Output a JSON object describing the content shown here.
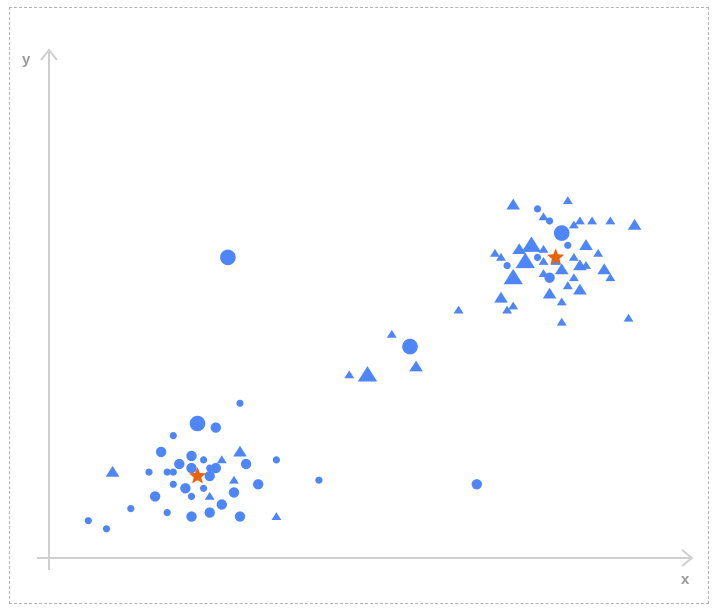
{
  "chart_data": {
    "type": "scatter",
    "title": "",
    "xlabel": "x",
    "ylabel": "y",
    "xlim": [
      0,
      100
    ],
    "ylim": [
      0,
      100
    ],
    "grid": false,
    "legend": "none",
    "colors": {
      "point": "#4f86f7",
      "centroid": "#e8640c"
    },
    "centroids": [
      {
        "x": 22,
        "y": 17
      },
      {
        "x": 81,
        "y": 71
      }
    ],
    "points": [
      {
        "x": 22,
        "y": 30,
        "shape": "circle",
        "size": "large"
      },
      {
        "x": 27,
        "y": 71,
        "shape": "circle",
        "size": "large"
      },
      {
        "x": 57,
        "y": 49,
        "shape": "circle",
        "size": "large"
      },
      {
        "x": 82,
        "y": 77,
        "shape": "circle",
        "size": "large"
      },
      {
        "x": 29,
        "y": 35,
        "shape": "circle",
        "size": "small"
      },
      {
        "x": 25,
        "y": 29,
        "shape": "circle",
        "size": "medium"
      },
      {
        "x": 18,
        "y": 27,
        "shape": "circle",
        "size": "small"
      },
      {
        "x": 16,
        "y": 23,
        "shape": "circle",
        "size": "medium"
      },
      {
        "x": 21,
        "y": 22,
        "shape": "circle",
        "size": "medium"
      },
      {
        "x": 23,
        "y": 21,
        "shape": "circle",
        "size": "small"
      },
      {
        "x": 19,
        "y": 20,
        "shape": "circle",
        "size": "medium"
      },
      {
        "x": 21,
        "y": 19,
        "shape": "circle",
        "size": "medium"
      },
      {
        "x": 18,
        "y": 18,
        "shape": "circle",
        "size": "small"
      },
      {
        "x": 17,
        "y": 18,
        "shape": "circle",
        "size": "small"
      },
      {
        "x": 14,
        "y": 18,
        "shape": "circle",
        "size": "small"
      },
      {
        "x": 24,
        "y": 19,
        "shape": "circle",
        "size": "small"
      },
      {
        "x": 25,
        "y": 19,
        "shape": "circle",
        "size": "medium"
      },
      {
        "x": 30,
        "y": 20,
        "shape": "circle",
        "size": "medium"
      },
      {
        "x": 35,
        "y": 21,
        "shape": "circle",
        "size": "small"
      },
      {
        "x": 24,
        "y": 17,
        "shape": "circle",
        "size": "medium"
      },
      {
        "x": 18,
        "y": 15,
        "shape": "circle",
        "size": "small"
      },
      {
        "x": 32,
        "y": 15,
        "shape": "circle",
        "size": "medium"
      },
      {
        "x": 20,
        "y": 14,
        "shape": "circle",
        "size": "medium"
      },
      {
        "x": 23,
        "y": 14,
        "shape": "circle",
        "size": "small"
      },
      {
        "x": 28,
        "y": 13,
        "shape": "circle",
        "size": "medium"
      },
      {
        "x": 15,
        "y": 12,
        "shape": "circle",
        "size": "medium"
      },
      {
        "x": 21,
        "y": 12,
        "shape": "circle",
        "size": "small"
      },
      {
        "x": 26,
        "y": 10,
        "shape": "circle",
        "size": "medium"
      },
      {
        "x": 11,
        "y": 9,
        "shape": "circle",
        "size": "small"
      },
      {
        "x": 17,
        "y": 8,
        "shape": "circle",
        "size": "small"
      },
      {
        "x": 21,
        "y": 7,
        "shape": "circle",
        "size": "medium"
      },
      {
        "x": 24,
        "y": 8,
        "shape": "circle",
        "size": "medium"
      },
      {
        "x": 29,
        "y": 7,
        "shape": "circle",
        "size": "medium"
      },
      {
        "x": 4,
        "y": 6,
        "shape": "circle",
        "size": "small"
      },
      {
        "x": 7,
        "y": 4,
        "shape": "circle",
        "size": "small"
      },
      {
        "x": 42,
        "y": 16,
        "shape": "circle",
        "size": "small"
      },
      {
        "x": 68,
        "y": 15,
        "shape": "circle",
        "size": "medium"
      },
      {
        "x": 78,
        "y": 83,
        "shape": "circle",
        "size": "small"
      },
      {
        "x": 83,
        "y": 74,
        "shape": "circle",
        "size": "small"
      },
      {
        "x": 78,
        "y": 71,
        "shape": "circle",
        "size": "small"
      },
      {
        "x": 73,
        "y": 69,
        "shape": "circle",
        "size": "small"
      },
      {
        "x": 80,
        "y": 66,
        "shape": "circle",
        "size": "medium"
      },
      {
        "x": 80,
        "y": 80,
        "shape": "circle",
        "size": "small"
      },
      {
        "x": 29,
        "y": 23,
        "shape": "triangle",
        "size": "medium"
      },
      {
        "x": 26,
        "y": 21,
        "shape": "triangle",
        "size": "small"
      },
      {
        "x": 8,
        "y": 18,
        "shape": "triangle",
        "size": "medium"
      },
      {
        "x": 28,
        "y": 16,
        "shape": "triangle",
        "size": "small"
      },
      {
        "x": 24,
        "y": 12,
        "shape": "triangle",
        "size": "small"
      },
      {
        "x": 35,
        "y": 7,
        "shape": "triangle",
        "size": "small"
      },
      {
        "x": 54,
        "y": 52,
        "shape": "triangle",
        "size": "small"
      },
      {
        "x": 47,
        "y": 42,
        "shape": "triangle",
        "size": "small"
      },
      {
        "x": 50,
        "y": 42,
        "shape": "triangle",
        "size": "large"
      },
      {
        "x": 58,
        "y": 44,
        "shape": "triangle",
        "size": "medium"
      },
      {
        "x": 65,
        "y": 58,
        "shape": "triangle",
        "size": "small"
      },
      {
        "x": 74,
        "y": 84,
        "shape": "triangle",
        "size": "medium"
      },
      {
        "x": 79,
        "y": 81,
        "shape": "triangle",
        "size": "small"
      },
      {
        "x": 83,
        "y": 85,
        "shape": "triangle",
        "size": "small"
      },
      {
        "x": 84,
        "y": 79,
        "shape": "triangle",
        "size": "small"
      },
      {
        "x": 85,
        "y": 80,
        "shape": "triangle",
        "size": "small"
      },
      {
        "x": 87,
        "y": 80,
        "shape": "triangle",
        "size": "small"
      },
      {
        "x": 90,
        "y": 80,
        "shape": "triangle",
        "size": "small"
      },
      {
        "x": 94,
        "y": 79,
        "shape": "triangle",
        "size": "medium"
      },
      {
        "x": 77,
        "y": 74,
        "shape": "triangle",
        "size": "large"
      },
      {
        "x": 75,
        "y": 73,
        "shape": "triangle",
        "size": "medium"
      },
      {
        "x": 71,
        "y": 72,
        "shape": "triangle",
        "size": "small"
      },
      {
        "x": 72,
        "y": 71,
        "shape": "triangle",
        "size": "small"
      },
      {
        "x": 86,
        "y": 74,
        "shape": "triangle",
        "size": "medium"
      },
      {
        "x": 88,
        "y": 72,
        "shape": "triangle",
        "size": "small"
      },
      {
        "x": 79,
        "y": 73,
        "shape": "triangle",
        "size": "small"
      },
      {
        "x": 84,
        "y": 71,
        "shape": "triangle",
        "size": "small"
      },
      {
        "x": 76,
        "y": 70,
        "shape": "triangle",
        "size": "large"
      },
      {
        "x": 79,
        "y": 70,
        "shape": "triangle",
        "size": "small"
      },
      {
        "x": 81,
        "y": 70,
        "shape": "triangle",
        "size": "small"
      },
      {
        "x": 85,
        "y": 69,
        "shape": "triangle",
        "size": "medium"
      },
      {
        "x": 86,
        "y": 69,
        "shape": "triangle",
        "size": "small"
      },
      {
        "x": 82,
        "y": 68,
        "shape": "triangle",
        "size": "medium"
      },
      {
        "x": 79,
        "y": 67,
        "shape": "triangle",
        "size": "small"
      },
      {
        "x": 84,
        "y": 66,
        "shape": "triangle",
        "size": "small"
      },
      {
        "x": 89,
        "y": 68,
        "shape": "triangle",
        "size": "medium"
      },
      {
        "x": 90,
        "y": 66,
        "shape": "triangle",
        "size": "small"
      },
      {
        "x": 74,
        "y": 66,
        "shape": "triangle",
        "size": "large"
      },
      {
        "x": 83,
        "y": 64,
        "shape": "triangle",
        "size": "small"
      },
      {
        "x": 85,
        "y": 63,
        "shape": "triangle",
        "size": "medium"
      },
      {
        "x": 72,
        "y": 61,
        "shape": "triangle",
        "size": "medium"
      },
      {
        "x": 74,
        "y": 59,
        "shape": "triangle",
        "size": "small"
      },
      {
        "x": 80,
        "y": 62,
        "shape": "triangle",
        "size": "medium"
      },
      {
        "x": 73,
        "y": 58,
        "shape": "triangle",
        "size": "small"
      },
      {
        "x": 82,
        "y": 60,
        "shape": "triangle",
        "size": "small"
      },
      {
        "x": 93,
        "y": 56,
        "shape": "triangle",
        "size": "small"
      },
      {
        "x": 82,
        "y": 55,
        "shape": "triangle",
        "size": "small"
      }
    ]
  }
}
